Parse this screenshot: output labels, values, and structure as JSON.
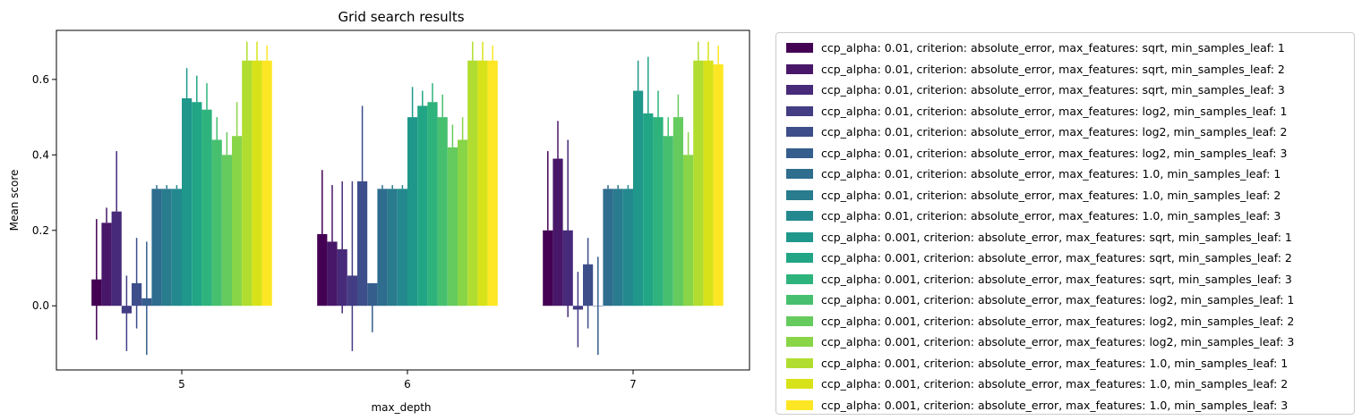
{
  "chart_data": {
    "type": "bar",
    "title": "Grid search results",
    "xlabel": "max_depth",
    "ylabel": "Mean score",
    "categories": [
      "5",
      "6",
      "7"
    ],
    "ylim": [
      -0.17,
      0.73
    ],
    "yticks": [
      "0.0",
      "0.2",
      "0.4",
      "0.6"
    ],
    "ytick_values": [
      0.0,
      0.2,
      0.4,
      0.6
    ],
    "legend_position": "outside-right",
    "grid": false,
    "series": [
      {
        "name": "ccp_alpha: 0.01, criterion: absolute_error, max_features: sqrt, min_samples_leaf: 1",
        "color": "#440154",
        "values": [
          0.07,
          0.19,
          0.2
        ],
        "err_hi": [
          0.23,
          0.36,
          0.41
        ],
        "err_lo": [
          -0.09,
          0.19,
          0.2
        ]
      },
      {
        "name": "ccp_alpha: 0.01, criterion: absolute_error, max_features: sqrt, min_samples_leaf: 2",
        "color": "#481769",
        "values": [
          0.22,
          0.17,
          0.39
        ],
        "err_hi": [
          0.26,
          0.32,
          0.49
        ],
        "err_lo": [
          0.22,
          0.17,
          0.39
        ]
      },
      {
        "name": "ccp_alpha: 0.01, criterion: absolute_error, max_features: sqrt, min_samples_leaf: 3",
        "color": "#472a7a",
        "values": [
          0.25,
          0.15,
          0.2
        ],
        "err_hi": [
          0.41,
          0.33,
          0.44
        ],
        "err_lo": [
          0.25,
          -0.02,
          -0.03
        ]
      },
      {
        "name": "ccp_alpha: 0.01, criterion: absolute_error, max_features: log2, min_samples_leaf: 1",
        "color": "#433d84",
        "values": [
          -0.02,
          0.08,
          -0.01
        ],
        "err_hi": [
          0.08,
          0.33,
          0.09
        ],
        "err_lo": [
          -0.12,
          -0.12,
          -0.11
        ]
      },
      {
        "name": "ccp_alpha: 0.01, criterion: absolute_error, max_features: log2, min_samples_leaf: 2",
        "color": "#3d4e8a",
        "values": [
          0.06,
          0.33,
          0.11
        ],
        "err_hi": [
          0.18,
          0.53,
          0.18
        ],
        "err_lo": [
          -0.06,
          0.33,
          -0.06
        ]
      },
      {
        "name": "ccp_alpha: 0.01, criterion: absolute_error, max_features: log2, min_samples_leaf: 3",
        "color": "#355e8d",
        "values": [
          0.02,
          0.06,
          0.0
        ],
        "err_hi": [
          0.17,
          0.06,
          0.13
        ],
        "err_lo": [
          -0.13,
          -0.07,
          -0.13
        ]
      },
      {
        "name": "ccp_alpha: 0.01, criterion: absolute_error, max_features: 1.0, min_samples_leaf: 1",
        "color": "#2e6d8e",
        "values": [
          0.31,
          0.31,
          0.31
        ],
        "err_hi": [
          0.32,
          0.32,
          0.32
        ],
        "err_lo": [
          0.31,
          0.31,
          0.31
        ]
      },
      {
        "name": "ccp_alpha: 0.01, criterion: absolute_error, max_features: 1.0, min_samples_leaf: 2",
        "color": "#297b8e",
        "values": [
          0.31,
          0.31,
          0.31
        ],
        "err_hi": [
          0.32,
          0.32,
          0.32
        ],
        "err_lo": [
          0.31,
          0.31,
          0.31
        ]
      },
      {
        "name": "ccp_alpha: 0.01, criterion: absolute_error, max_features: 1.0, min_samples_leaf: 3",
        "color": "#23898e",
        "values": [
          0.31,
          0.31,
          0.31
        ],
        "err_hi": [
          0.32,
          0.32,
          0.32
        ],
        "err_lo": [
          0.31,
          0.31,
          0.31
        ]
      },
      {
        "name": "ccp_alpha: 0.001, criterion: absolute_error, max_features: sqrt, min_samples_leaf: 1",
        "color": "#1f978b",
        "values": [
          0.55,
          0.5,
          0.57
        ],
        "err_hi": [
          0.63,
          0.58,
          0.65
        ],
        "err_lo": [
          0.55,
          0.5,
          0.57
        ]
      },
      {
        "name": "ccp_alpha: 0.001, criterion: absolute_error, max_features: sqrt, min_samples_leaf: 2",
        "color": "#21a585",
        "values": [
          0.54,
          0.53,
          0.51
        ],
        "err_hi": [
          0.61,
          0.57,
          0.66
        ],
        "err_lo": [
          0.54,
          0.53,
          0.51
        ]
      },
      {
        "name": "ccp_alpha: 0.001, criterion: absolute_error, max_features: sqrt, min_samples_leaf: 3",
        "color": "#2eb37c",
        "values": [
          0.52,
          0.54,
          0.5
        ],
        "err_hi": [
          0.59,
          0.59,
          0.57
        ],
        "err_lo": [
          0.52,
          0.54,
          0.5
        ]
      },
      {
        "name": "ccp_alpha: 0.001, criterion: absolute_error, max_features: log2, min_samples_leaf: 1",
        "color": "#46c06f",
        "values": [
          0.44,
          0.5,
          0.45
        ],
        "err_hi": [
          0.5,
          0.56,
          0.5
        ],
        "err_lo": [
          0.44,
          0.5,
          0.45
        ]
      },
      {
        "name": "ccp_alpha: 0.001, criterion: absolute_error, max_features: log2, min_samples_leaf: 2",
        "color": "#65cb5e",
        "values": [
          0.4,
          0.42,
          0.5
        ],
        "err_hi": [
          0.46,
          0.48,
          0.56
        ],
        "err_lo": [
          0.4,
          0.42,
          0.5
        ]
      },
      {
        "name": "ccp_alpha: 0.001, criterion: absolute_error, max_features: log2, min_samples_leaf: 3",
        "color": "#89d548",
        "values": [
          0.45,
          0.44,
          0.4
        ],
        "err_hi": [
          0.54,
          0.5,
          0.46
        ],
        "err_lo": [
          0.45,
          0.44,
          0.4
        ]
      },
      {
        "name": "ccp_alpha: 0.001, criterion: absolute_error, max_features: 1.0, min_samples_leaf: 1",
        "color": "#b0dd2f",
        "values": [
          0.65,
          0.65,
          0.65
        ],
        "err_hi": [
          0.7,
          0.7,
          0.7
        ],
        "err_lo": [
          0.65,
          0.65,
          0.65
        ]
      },
      {
        "name": "ccp_alpha: 0.001, criterion: absolute_error, max_features: 1.0, min_samples_leaf: 2",
        "color": "#d8e219",
        "values": [
          0.65,
          0.65,
          0.65
        ],
        "err_hi": [
          0.7,
          0.7,
          0.7
        ],
        "err_lo": [
          0.65,
          0.65,
          0.65
        ]
      },
      {
        "name": "ccp_alpha: 0.001, criterion: absolute_error, max_features: 1.0, min_samples_leaf: 3",
        "color": "#fde725",
        "values": [
          0.65,
          0.65,
          0.64
        ],
        "err_hi": [
          0.69,
          0.69,
          0.69
        ],
        "err_lo": [
          0.65,
          0.65,
          0.64
        ]
      }
    ]
  }
}
